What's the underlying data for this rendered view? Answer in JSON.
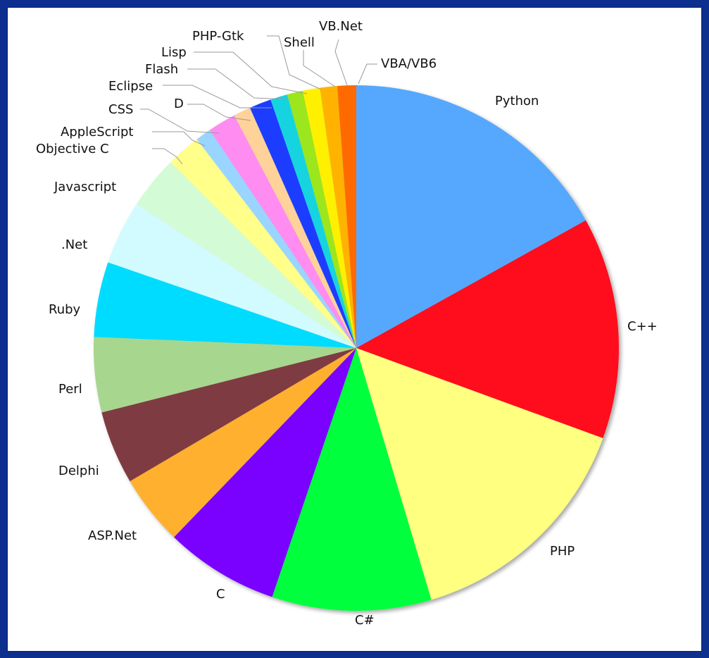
{
  "chart_data": {
    "type": "pie",
    "title": "",
    "slices": [
      {
        "label": "Python",
        "value": 17.6,
        "color": "#57a8ff"
      },
      {
        "label": "C++",
        "value": 14.2,
        "color": "#ff0a1e"
      },
      {
        "label": "PHP",
        "value": 15.4,
        "color": "#ffff80"
      },
      {
        "label": "C#",
        "value": 10.2,
        "color": "#00ff3c"
      },
      {
        "label": "C",
        "value": 7.3,
        "color": "#7a00ff"
      },
      {
        "label": "ASP.Net",
        "value": 4.5,
        "color": "#ffb02e"
      },
      {
        "label": "Delphi",
        "value": 4.7,
        "color": "#7f3b43"
      },
      {
        "label": "Perl",
        "value": 4.8,
        "color": "#a7d68e"
      },
      {
        "label": "Ruby",
        "value": 4.8,
        "color": "#00dcff"
      },
      {
        "label": ".Net",
        "value": 4.1,
        "color": "#d2fbff"
      },
      {
        "label": "Javascript",
        "value": 3.4,
        "color": "#d3fcd6"
      },
      {
        "label": "Objective C",
        "value": 2.2,
        "color": "#ffff8a"
      },
      {
        "label": "AppleScript",
        "value": 1.0,
        "color": "#9ad5ff"
      },
      {
        "label": "CSS",
        "value": 1.8,
        "color": "#ff8cf0"
      },
      {
        "label": "D",
        "value": 1.1,
        "color": "#ffd29a"
      },
      {
        "label": "Eclipse",
        "value": 1.4,
        "color": "#1f3dff"
      },
      {
        "label": "Flash",
        "value": 1.1,
        "color": "#16d3e0"
      },
      {
        "label": "Lisp",
        "value": 1.0,
        "color": "#9be61a"
      },
      {
        "label": "PHP-Gtk",
        "value": 1.1,
        "color": "#fff000"
      },
      {
        "label": "Shell",
        "value": 1.1,
        "color": "#ffb300"
      },
      {
        "label": "VB.Net",
        "value": 1.2,
        "color": "#ff6a00"
      },
      {
        "label": "VBA/VB6",
        "value": 0.0,
        "color": "#ff6a00"
      }
    ],
    "start": "12-o-clock",
    "direction": "clockwise"
  }
}
